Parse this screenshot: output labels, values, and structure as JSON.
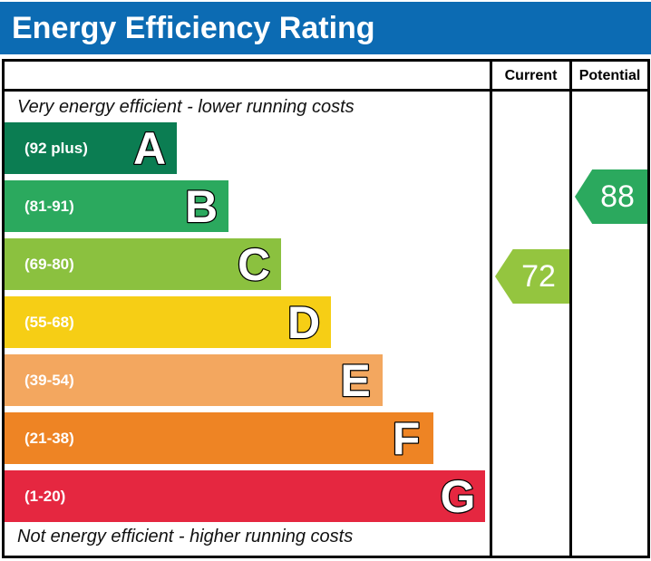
{
  "header": {
    "title": "Energy Efficiency Rating",
    "bg_color": "#0c6bb3"
  },
  "table": {
    "current_header": "Current",
    "potential_header": "Potential",
    "top_note": "Very energy efficient - lower running costs",
    "bottom_note": "Not energy efficient - higher running costs"
  },
  "bands": [
    {
      "letter": "A",
      "range": "(92 plus)",
      "color": "#0b7d52"
    },
    {
      "letter": "B",
      "range": "(81-91)",
      "color": "#2ba95e"
    },
    {
      "letter": "C",
      "range": "(69-80)",
      "color": "#8bc13f"
    },
    {
      "letter": "D",
      "range": "(55-68)",
      "color": "#f6ce15"
    },
    {
      "letter": "E",
      "range": "(39-54)",
      "color": "#f3a75f"
    },
    {
      "letter": "F",
      "range": "(21-38)",
      "color": "#ee8424"
    },
    {
      "letter": "G",
      "range": "(1-20)",
      "color": "#e52740"
    }
  ],
  "ratings": {
    "current": {
      "value": "72",
      "band": "C",
      "color": "#94c53f"
    },
    "potential": {
      "value": "88",
      "band": "B",
      "color": "#2ba95e"
    }
  },
  "chart_data": {
    "type": "bar",
    "title": "Energy Efficiency Rating",
    "categories": [
      "A",
      "B",
      "C",
      "D",
      "E",
      "F",
      "G"
    ],
    "band_ranges": [
      "92 plus",
      "81-91",
      "69-80",
      "55-68",
      "39-54",
      "21-38",
      "1-20"
    ],
    "band_colors": [
      "#0b7d52",
      "#2ba95e",
      "#8bc13f",
      "#f6ce15",
      "#f3a75f",
      "#ee8424",
      "#e52740"
    ],
    "series": [
      {
        "name": "Current",
        "value": 72,
        "band": "C"
      },
      {
        "name": "Potential",
        "value": 88,
        "band": "B"
      }
    ],
    "value_range": [
      1,
      100
    ],
    "annotations": [
      "Very energy efficient - lower running costs",
      "Not energy efficient - higher running costs"
    ],
    "legend_position": "none",
    "grid": false
  }
}
